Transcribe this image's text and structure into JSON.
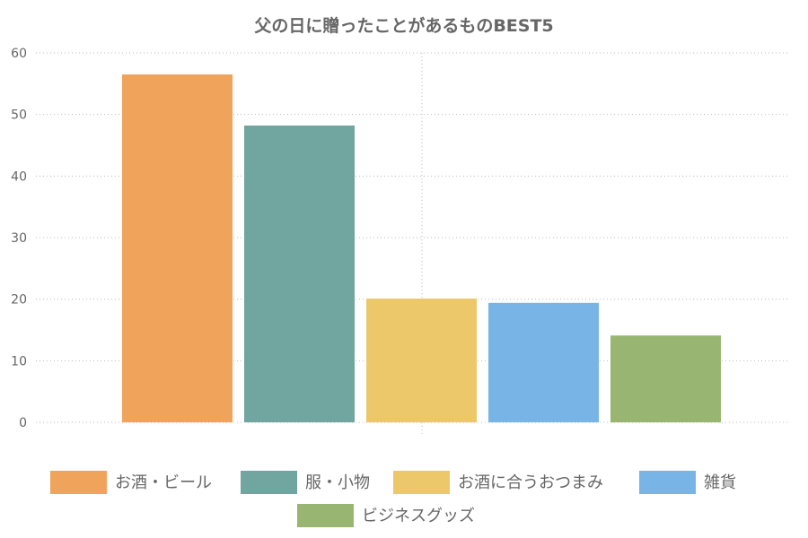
{
  "chart_data": {
    "type": "bar",
    "title": "父の日に贈ったことがあるものBEST5",
    "categories": [
      "お酒・ビール",
      "服・小物",
      "お酒に合うおつまみ",
      "雑貨",
      "ビジネスグッズ"
    ],
    "values": [
      56.5,
      48.2,
      20.1,
      19.4,
      14.1
    ],
    "colors": [
      "#f0a35a",
      "#70a5a0",
      "#ecc86a",
      "#78b4e6",
      "#98b672"
    ],
    "ylim": [
      0,
      60
    ],
    "yticks": [
      "0",
      "10",
      "20",
      "30",
      "40",
      "50",
      "60"
    ],
    "grid": true,
    "legend_position": "bottom"
  }
}
